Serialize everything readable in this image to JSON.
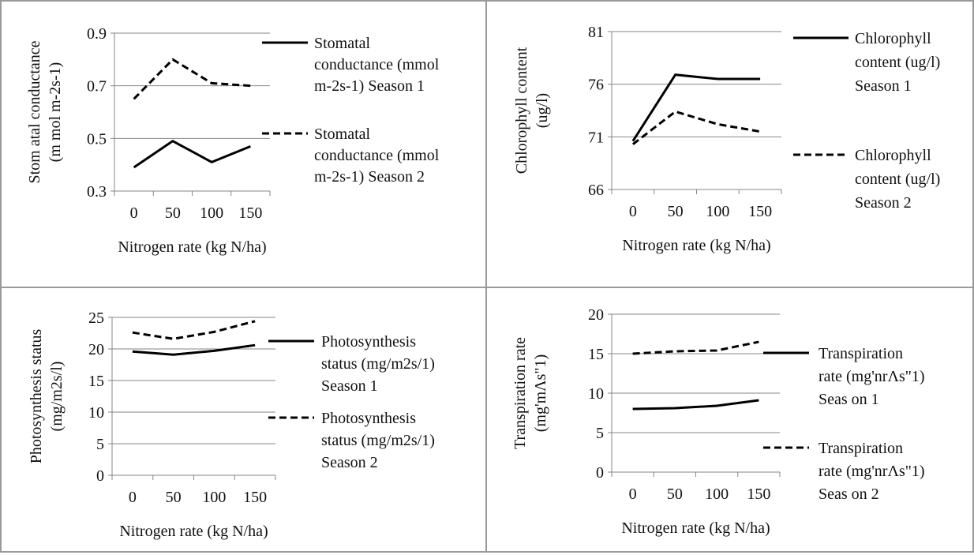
{
  "chart_data": [
    {
      "type": "line",
      "categories": [
        "0",
        "50",
        "100",
        "150"
      ],
      "ylabel_lines": [
        "Stom atal conductance",
        "(m mol m-2s-1)"
      ],
      "xlabel": "Nitrogen rate (kg N/ha)",
      "yticks": [
        "0.3",
        "0.5",
        "0.7",
        "0.9"
      ],
      "ylim": [
        0.3,
        0.9
      ],
      "ystep": 0.2,
      "legend_position": "right",
      "series": [
        {
          "name": "Stomatal conductance (mmol m-2s-1) Season 1",
          "legend_lines": [
            "Stomatal",
            "conductance (mmol",
            "m-2s-1) Season 1"
          ],
          "style": "solid",
          "values": [
            0.39,
            0.49,
            0.41,
            0.47
          ]
        },
        {
          "name": "Stomatal conductance (mmol m-2s-1) Season 2",
          "legend_lines": [
            "Stomatal",
            "conductance (mmol",
            "m-2s-1) Season 2"
          ],
          "style": "dashed",
          "values": [
            0.65,
            0.8,
            0.71,
            0.7
          ]
        }
      ]
    },
    {
      "type": "line",
      "categories": [
        "0",
        "50",
        "100",
        "150"
      ],
      "ylabel_lines": [
        "Chlorophyll content",
        "(ug/l)"
      ],
      "xlabel": "Nitrogen rate (kg N/ha)",
      "yticks": [
        "66",
        "71",
        "76",
        "81"
      ],
      "ylim": [
        66,
        81
      ],
      "ystep": 5,
      "legend_position": "right",
      "series": [
        {
          "name": "Chlorophyll content (ug/l) Season 1",
          "legend_lines": [
            "Chlorophyll",
            "content (ug/l)",
            "Season 1"
          ],
          "style": "solid",
          "values": [
            70.6,
            76.9,
            76.5,
            76.5
          ]
        },
        {
          "name": "Chlorophyll content (ug/l) Season 2",
          "legend_lines": [
            "Chlorophyll",
            "content (ug/l)",
            "Season 2"
          ],
          "style": "dashed",
          "values": [
            70.3,
            73.4,
            72.2,
            71.5
          ]
        }
      ]
    },
    {
      "type": "line",
      "categories": [
        "0",
        "50",
        "100",
        "150"
      ],
      "ylabel_lines": [
        "Photosynthesis status",
        "(mg/m2s/l)"
      ],
      "xlabel": "Nitrogen rate (kg N/ha)",
      "yticks": [
        "0",
        "5",
        "10",
        "15",
        "20",
        "25"
      ],
      "ylim": [
        0,
        25
      ],
      "ystep": 5,
      "legend_position": "right",
      "series": [
        {
          "name": "Photosynthesis status (mg/m2s/1) Season 1",
          "legend_lines": [
            "Photosynthesis",
            "status (mg/m2s/1)",
            "Season 1"
          ],
          "style": "solid",
          "values": [
            19.6,
            19.1,
            19.7,
            20.6
          ]
        },
        {
          "name": "Photosynthesis status (mg/m2s/1) Season 2",
          "legend_lines": [
            "Photosynthesis",
            "status (mg/m2s/1)",
            "Season 2"
          ],
          "style": "dashed",
          "values": [
            22.6,
            21.6,
            22.7,
            24.4
          ]
        }
      ]
    },
    {
      "type": "line",
      "categories": [
        "0",
        "50",
        "100",
        "150"
      ],
      "ylabel_lines": [
        "Transpiration rate",
        "(mg'mΛs\"1)"
      ],
      "xlabel": "Nitrogen rate (kg N/ha)",
      "yticks": [
        "0",
        "5",
        "10",
        "15",
        "20"
      ],
      "ylim": [
        0,
        20
      ],
      "ystep": 5,
      "legend_position": "right",
      "series": [
        {
          "name": "Transpiration rate (mg'nrΛs\"1) Season 1",
          "legend_lines": [
            "Transpiration",
            "rate (mg'nrΛs\"1)",
            "Seas on 1"
          ],
          "style": "solid",
          "values": [
            8.0,
            8.1,
            8.4,
            9.1
          ]
        },
        {
          "name": "Transpiration rate (mg'nrΛs\"1) Season 2",
          "legend_lines": [
            "Transpiration",
            "rate (mg'nrΛs\"1)",
            "Seas on 2"
          ],
          "style": "dashed",
          "values": [
            15.0,
            15.3,
            15.4,
            16.5
          ]
        }
      ]
    }
  ]
}
